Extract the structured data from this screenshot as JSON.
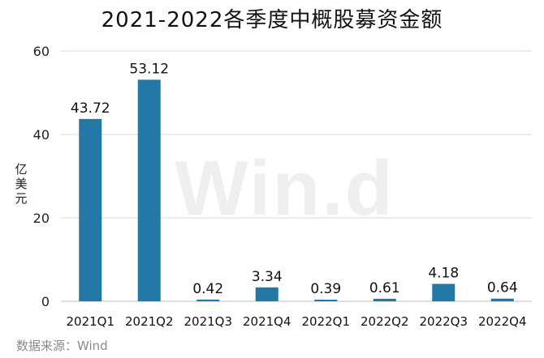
{
  "source_text": "数据来源：Wind",
  "watermark_text": "Win.d",
  "chart_data": {
    "type": "bar",
    "title": "2021-2022各季度中概股募资金额",
    "xlabel": "",
    "ylabel": "亿美元",
    "categories": [
      "2021Q1",
      "2021Q2",
      "2021Q3",
      "2021Q4",
      "2022Q1",
      "2022Q2",
      "2022Q3",
      "2022Q4"
    ],
    "values": [
      43.72,
      53.12,
      0.42,
      3.34,
      0.39,
      0.61,
      4.18,
      0.64
    ],
    "value_labels": [
      "43.72",
      "53.12",
      "0.42",
      "3.34",
      "0.39",
      "0.61",
      "4.18",
      "0.64"
    ],
    "yticks": [
      0,
      20,
      40,
      60
    ],
    "ylim": [
      0,
      60
    ],
    "grid": true,
    "bar_color": "#2378a6",
    "grid_color": "#d9d9d9"
  }
}
